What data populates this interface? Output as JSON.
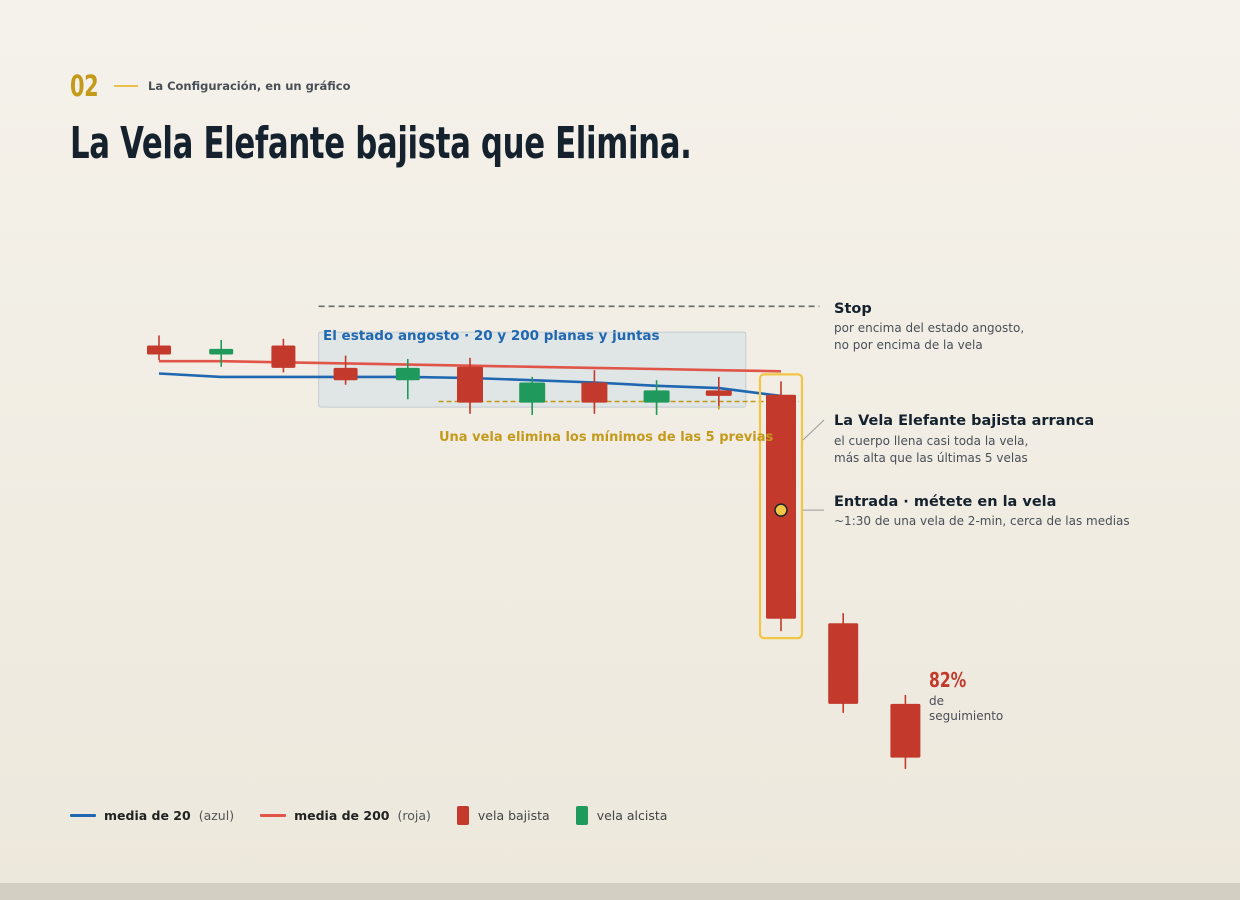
{
  "header": {
    "number": "02",
    "kicker": "La Configuración, en un gráfico",
    "title": "La Vela Elefante bajista que Elimina."
  },
  "colors": {
    "bearish": "#c33a2c",
    "bullish": "#1f9a5c",
    "ma20": "#1f67b0",
    "ma200": "#e05548",
    "accent": "#c49a1b",
    "highlight": "#f3c544",
    "zone": "#dde3e6"
  },
  "annotations": {
    "zone_label": "El estado angosto · 20 y 200 planas y juntas",
    "lows_label": "Una vela elimina los mínimos de las 5 previas",
    "stop_title": "Stop",
    "stop_line1": "por encima del estado angosto,",
    "stop_line2": "no por encima de la vela",
    "elephant_title": "La Vela Elefante bajista arranca",
    "elephant_line1": "el cuerpo llena casi toda la vela,",
    "elephant_line2": "más alta que las últimas 5 velas",
    "entry_title": "Entrada · métete en la vela",
    "entry_line1": "~1:30 de una vela de 2-min, cerca de las medias",
    "follow_pct": "82%",
    "follow_line1": "de",
    "follow_line2": "seguimiento"
  },
  "legend": {
    "ma20_name": "media de 20",
    "ma20_note": "(azul)",
    "ma200_name": "media de 200",
    "ma200_note": "(roja)",
    "bear_label": "vela bajista",
    "bull_label": "vela alcista"
  },
  "chart_data": {
    "type": "candlestick",
    "title": "",
    "candles": [
      {
        "index": 1,
        "dir": "bear",
        "open": 100.4,
        "close": 99.6,
        "high": 101.3,
        "low": 99.1
      },
      {
        "index": 2,
        "dir": "bull",
        "open": 99.6,
        "close": 100.1,
        "high": 100.9,
        "low": 98.5
      },
      {
        "index": 3,
        "dir": "bear",
        "open": 100.4,
        "close": 98.4,
        "high": 101.0,
        "low": 98.0
      },
      {
        "index": 4,
        "dir": "bear",
        "open": 98.4,
        "close": 97.3,
        "high": 99.5,
        "low": 96.9
      },
      {
        "index": 5,
        "dir": "bull",
        "open": 97.3,
        "close": 98.4,
        "high": 99.2,
        "low": 95.6
      },
      {
        "index": 6,
        "dir": "bear",
        "open": 98.5,
        "close": 95.3,
        "high": 99.3,
        "low": 94.3
      },
      {
        "index": 7,
        "dir": "bull",
        "open": 95.3,
        "close": 97.1,
        "high": 97.6,
        "low": 94.2
      },
      {
        "index": 8,
        "dir": "bear",
        "open": 97.1,
        "close": 95.3,
        "high": 98.2,
        "low": 94.3
      },
      {
        "index": 9,
        "dir": "bull",
        "open": 95.3,
        "close": 96.4,
        "high": 97.3,
        "low": 94.2
      },
      {
        "index": 10,
        "dir": "bear",
        "open": 96.4,
        "close": 95.9,
        "high": 97.6,
        "low": 95.0
      },
      {
        "index": 11,
        "dir": "bear",
        "open": 96.0,
        "close": 76.0,
        "high": 97.2,
        "low": 74.9
      },
      {
        "index": 12,
        "dir": "bear",
        "open": 75.6,
        "close": 68.4,
        "high": 76.5,
        "low": 67.6
      },
      {
        "index": 13,
        "dir": "bear",
        "open": 68.4,
        "close": 63.6,
        "high": 69.2,
        "low": 62.6
      }
    ],
    "ma20": [
      [
        1,
        97.9
      ],
      [
        2,
        97.6
      ],
      [
        3,
        97.6
      ],
      [
        4,
        97.6
      ],
      [
        5,
        97.6
      ],
      [
        6,
        97.5
      ],
      [
        7,
        97.3
      ],
      [
        8,
        97.1
      ],
      [
        9,
        96.8
      ],
      [
        10,
        96.6
      ],
      [
        11,
        95.9
      ]
    ],
    "ma200": [
      [
        1,
        99.0
      ],
      [
        2,
        99.0
      ],
      [
        3,
        98.9
      ],
      [
        4,
        98.8
      ],
      [
        5,
        98.7
      ],
      [
        6,
        98.6
      ],
      [
        7,
        98.5
      ],
      [
        8,
        98.4
      ],
      [
        9,
        98.3
      ],
      [
        10,
        98.2
      ],
      [
        11,
        98.1
      ]
    ],
    "zone": {
      "from": 4,
      "to": 10,
      "low": 94.9,
      "high": 101.6
    },
    "stop_level": 103.9,
    "lows_level": 95.4,
    "lows_ticks": [
      6,
      7,
      8,
      9,
      10
    ],
    "entry": {
      "index": 11,
      "price": 85.7
    },
    "ylim": [
      60,
      106
    ]
  }
}
